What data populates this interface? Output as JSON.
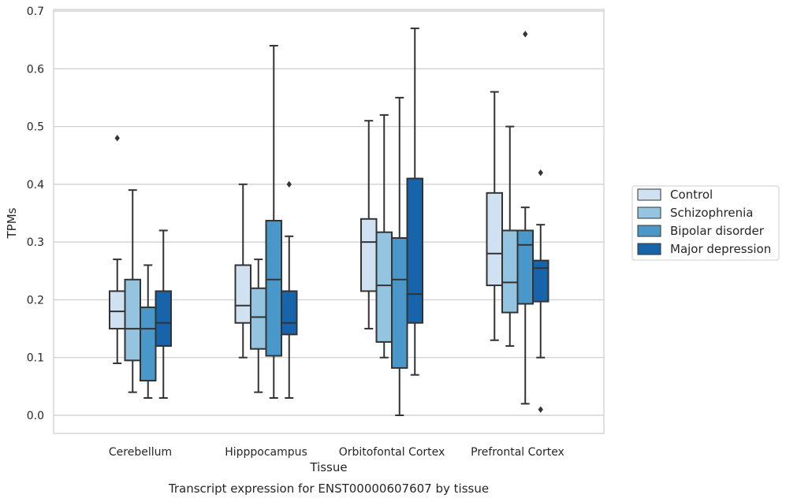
{
  "chart_data": {
    "type": "boxplot",
    "title": "Transcript expression for ENST00000607607 by tissue",
    "xlabel": "Tissue",
    "ylabel": "TPMs",
    "ylim": [
      -0.032,
      0.706
    ],
    "yticks": [
      0.0,
      0.1,
      0.2,
      0.3,
      0.4,
      0.5,
      0.6,
      0.7
    ],
    "ytick_labels": [
      "0.0",
      "0.1",
      "0.2",
      "0.3",
      "0.4",
      "0.5",
      "0.6",
      "0.7"
    ],
    "grid": "horizontal",
    "legend_position": "right",
    "categories": [
      "Cerebellum",
      "Hipppocampus",
      "Orbitofontal Cortex",
      "Prefrontal Cortex"
    ],
    "series": [
      {
        "name": "Control",
        "color": "#d0e1f2",
        "boxes": [
          {
            "whislo": 0.09,
            "q1": 0.15,
            "med": 0.18,
            "q3": 0.215,
            "whishi": 0.27,
            "fliers": [
              0.48
            ]
          },
          {
            "whislo": 0.1,
            "q1": 0.16,
            "med": 0.19,
            "q3": 0.26,
            "whishi": 0.4,
            "fliers": []
          },
          {
            "whislo": 0.15,
            "q1": 0.215,
            "med": 0.3,
            "q3": 0.34,
            "whishi": 0.51,
            "fliers": []
          },
          {
            "whislo": 0.13,
            "q1": 0.225,
            "med": 0.28,
            "q3": 0.385,
            "whishi": 0.56,
            "fliers": []
          }
        ]
      },
      {
        "name": "Schizophrenia",
        "color": "#94c4df",
        "boxes": [
          {
            "whislo": 0.04,
            "q1": 0.095,
            "med": 0.15,
            "q3": 0.235,
            "whishi": 0.39,
            "fliers": []
          },
          {
            "whislo": 0.04,
            "q1": 0.115,
            "med": 0.17,
            "q3": 0.22,
            "whishi": 0.27,
            "fliers": []
          },
          {
            "whislo": 0.1,
            "q1": 0.127,
            "med": 0.225,
            "q3": 0.317,
            "whishi": 0.52,
            "fliers": []
          },
          {
            "whislo": 0.12,
            "q1": 0.178,
            "med": 0.23,
            "q3": 0.32,
            "whishi": 0.5,
            "fliers": []
          }
        ]
      },
      {
        "name": "Bipolar disorder",
        "color": "#4a98c9",
        "boxes": [
          {
            "whislo": 0.03,
            "q1": 0.06,
            "med": 0.15,
            "q3": 0.187,
            "whishi": 0.26,
            "fliers": []
          },
          {
            "whislo": 0.03,
            "q1": 0.103,
            "med": 0.235,
            "q3": 0.337,
            "whishi": 0.64,
            "fliers": []
          },
          {
            "whislo": 0.0,
            "q1": 0.082,
            "med": 0.235,
            "q3": 0.307,
            "whishi": 0.55,
            "fliers": []
          },
          {
            "whislo": 0.02,
            "q1": 0.193,
            "med": 0.295,
            "q3": 0.32,
            "whishi": 0.36,
            "fliers": [
              0.66
            ]
          }
        ]
      },
      {
        "name": "Major depression",
        "color": "#1764ab",
        "boxes": [
          {
            "whislo": 0.03,
            "q1": 0.12,
            "med": 0.16,
            "q3": 0.215,
            "whishi": 0.32,
            "fliers": []
          },
          {
            "whislo": 0.03,
            "q1": 0.14,
            "med": 0.16,
            "q3": 0.215,
            "whishi": 0.31,
            "fliers": [
              0.4
            ]
          },
          {
            "whislo": 0.07,
            "q1": 0.16,
            "med": 0.21,
            "q3": 0.41,
            "whishi": 0.67,
            "fliers": []
          },
          {
            "whislo": 0.1,
            "q1": 0.197,
            "med": 0.255,
            "q3": 0.268,
            "whishi": 0.33,
            "fliers": [
              0.42,
              0.01
            ]
          }
        ]
      }
    ],
    "styles": {
      "grid_color": "#cccccc",
      "frame_color": "#cccccc",
      "line_color": "#333333",
      "text_color": "#262626",
      "background": "#ffffff"
    }
  }
}
